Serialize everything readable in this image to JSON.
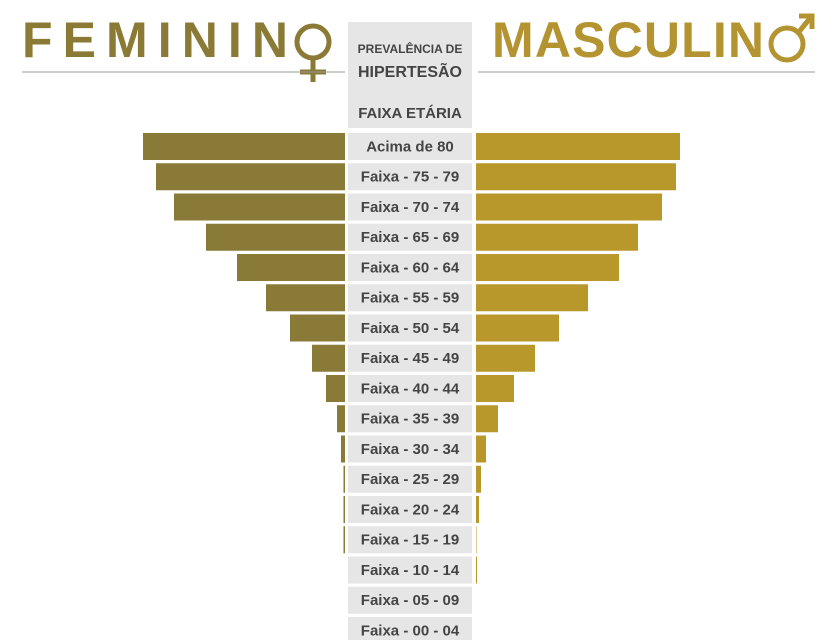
{
  "chart_data": {
    "type": "pyramid",
    "title_left": "FEMININ",
    "title_right": "MASCULIN",
    "center_title_1": "PREVALÊNCIA DE",
    "center_title_2": "HIPERTESÃO",
    "category_header": "FAIXA ETÁRIA",
    "categories": [
      "Acima de 80",
      "Faixa - 75 - 79",
      "Faixa - 70 - 74",
      "Faixa - 65 - 69",
      "Faixa - 60 - 64",
      "Faixa - 55 - 59",
      "Faixa - 50 - 54",
      "Faixa - 45 - 49",
      "Faixa - 40 - 44",
      "Faixa - 35 - 39",
      "Faixa - 30 - 34",
      "Faixa - 25 - 29",
      "Faixa - 20 - 24",
      "Faixa - 15 - 19",
      "Faixa - 10 - 14",
      "Faixa - 05 - 09",
      "Faixa - 00 - 04"
    ],
    "series": [
      {
        "name": "FEMININO",
        "color": "#8a7a38",
        "values": [
          202,
          189,
          171,
          139,
          108,
          79,
          55,
          33,
          19,
          8,
          4,
          1.5,
          1.5,
          1.5,
          0,
          0,
          0
        ]
      },
      {
        "name": "MASCULINO",
        "color": "#b8982a",
        "values": [
          204,
          200,
          186,
          162,
          143,
          112,
          83,
          59,
          38,
          22,
          10,
          5,
          3,
          0.5,
          1,
          0,
          0
        ]
      }
    ]
  }
}
